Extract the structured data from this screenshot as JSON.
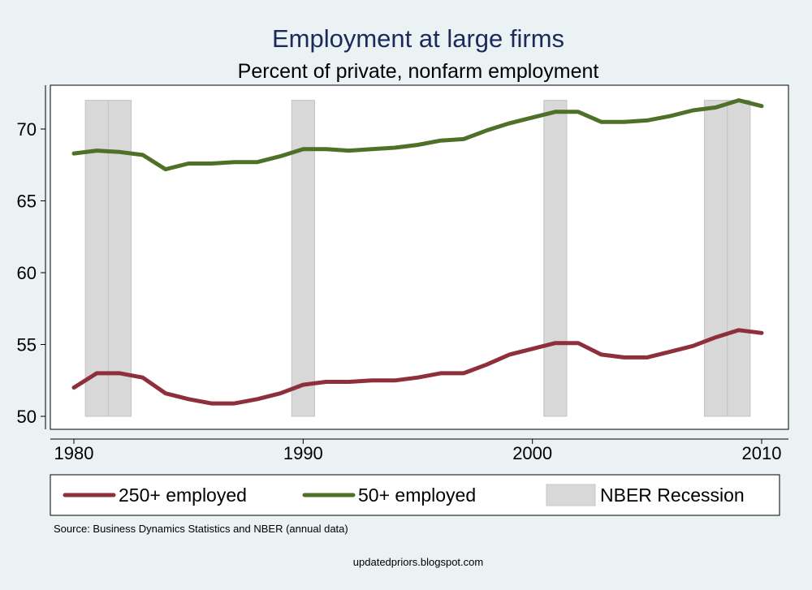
{
  "chart_data": {
    "type": "line",
    "title": "Employment at large firms",
    "subtitle": "Percent of private, nonfarm employment",
    "xlabel": "",
    "ylabel": "",
    "xlim": [
      1979.5,
      2011.0
    ],
    "ylim": [
      49.3,
      72.0
    ],
    "x_ticks": [
      1980,
      1990,
      2000,
      2010
    ],
    "y_ticks": [
      50,
      55,
      60,
      65,
      70
    ],
    "x": [
      1980,
      1981,
      1982,
      1983,
      1984,
      1985,
      1986,
      1987,
      1988,
      1989,
      1990,
      1991,
      1992,
      1993,
      1994,
      1995,
      1996,
      1997,
      1998,
      1999,
      2000,
      2001,
      2002,
      2003,
      2004,
      2005,
      2006,
      2007,
      2008,
      2009,
      2010
    ],
    "series": [
      {
        "name": "250+ employed",
        "color": "#8f2f3c",
        "values": [
          52.0,
          53.0,
          53.0,
          52.7,
          51.6,
          51.2,
          50.9,
          50.9,
          51.2,
          51.6,
          52.2,
          52.4,
          52.4,
          52.5,
          52.5,
          52.7,
          53.0,
          53.0,
          53.6,
          54.3,
          54.7,
          55.1,
          55.1,
          54.3,
          54.1,
          54.1,
          54.5,
          54.9,
          55.5,
          56.0,
          55.8
        ]
      },
      {
        "name": "50+ employed",
        "color": "#4f7029",
        "values": [
          68.3,
          68.5,
          68.4,
          68.2,
          67.2,
          67.6,
          67.6,
          67.7,
          67.7,
          68.1,
          68.6,
          68.6,
          68.5,
          68.6,
          68.7,
          68.9,
          69.2,
          69.3,
          69.9,
          70.4,
          70.8,
          71.2,
          71.2,
          70.5,
          70.5,
          70.6,
          70.9,
          71.3,
          71.5,
          72.0,
          71.6
        ]
      }
    ],
    "recessions": [
      {
        "start": 1980.5,
        "end": 1980.0,
        "note": ""
      }
    ],
    "recession_bands": [
      {
        "start": 1980.5,
        "end": 1981.5
      },
      {
        "start": 1981.5,
        "end": 1982.5
      },
      {
        "start": 1989.5,
        "end": 1990.5
      },
      {
        "start": 2000.5,
        "end": 2001.5
      },
      {
        "start": 2007.5,
        "end": 2008.5
      },
      {
        "start": 2008.5,
        "end": 2009.5
      }
    ],
    "recession_label": "NBER Recession",
    "recession_color": "#d8d8d8",
    "legend_position": "bottom",
    "source_note": "Source: Business Dynamics Statistics and NBER (annual data)",
    "credit": "updatedpriors.blogspot.com"
  }
}
